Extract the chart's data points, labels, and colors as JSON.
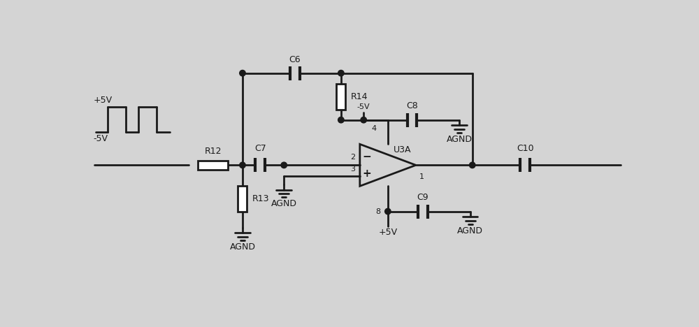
{
  "bg_color": "#d4d4d4",
  "line_color": "#1a1a1a",
  "lw": 2.0,
  "fig_width": 10.0,
  "fig_height": 4.68,
  "labels": {
    "plus5v": "+5V",
    "minus5v": "-5V",
    "R12": "R12",
    "R13": "R13",
    "R14": "R14",
    "C6": "C6",
    "C7": "C7",
    "C8": "C8",
    "C9": "C9",
    "C10": "C10",
    "U3A": "U3A",
    "AGND": "AGND",
    "pin1": "1",
    "pin2": "2",
    "pin3": "3",
    "pin4": "4",
    "pin8": "8",
    "minus5v_pin": "-5V",
    "plus5v_pin": "+5V"
  }
}
